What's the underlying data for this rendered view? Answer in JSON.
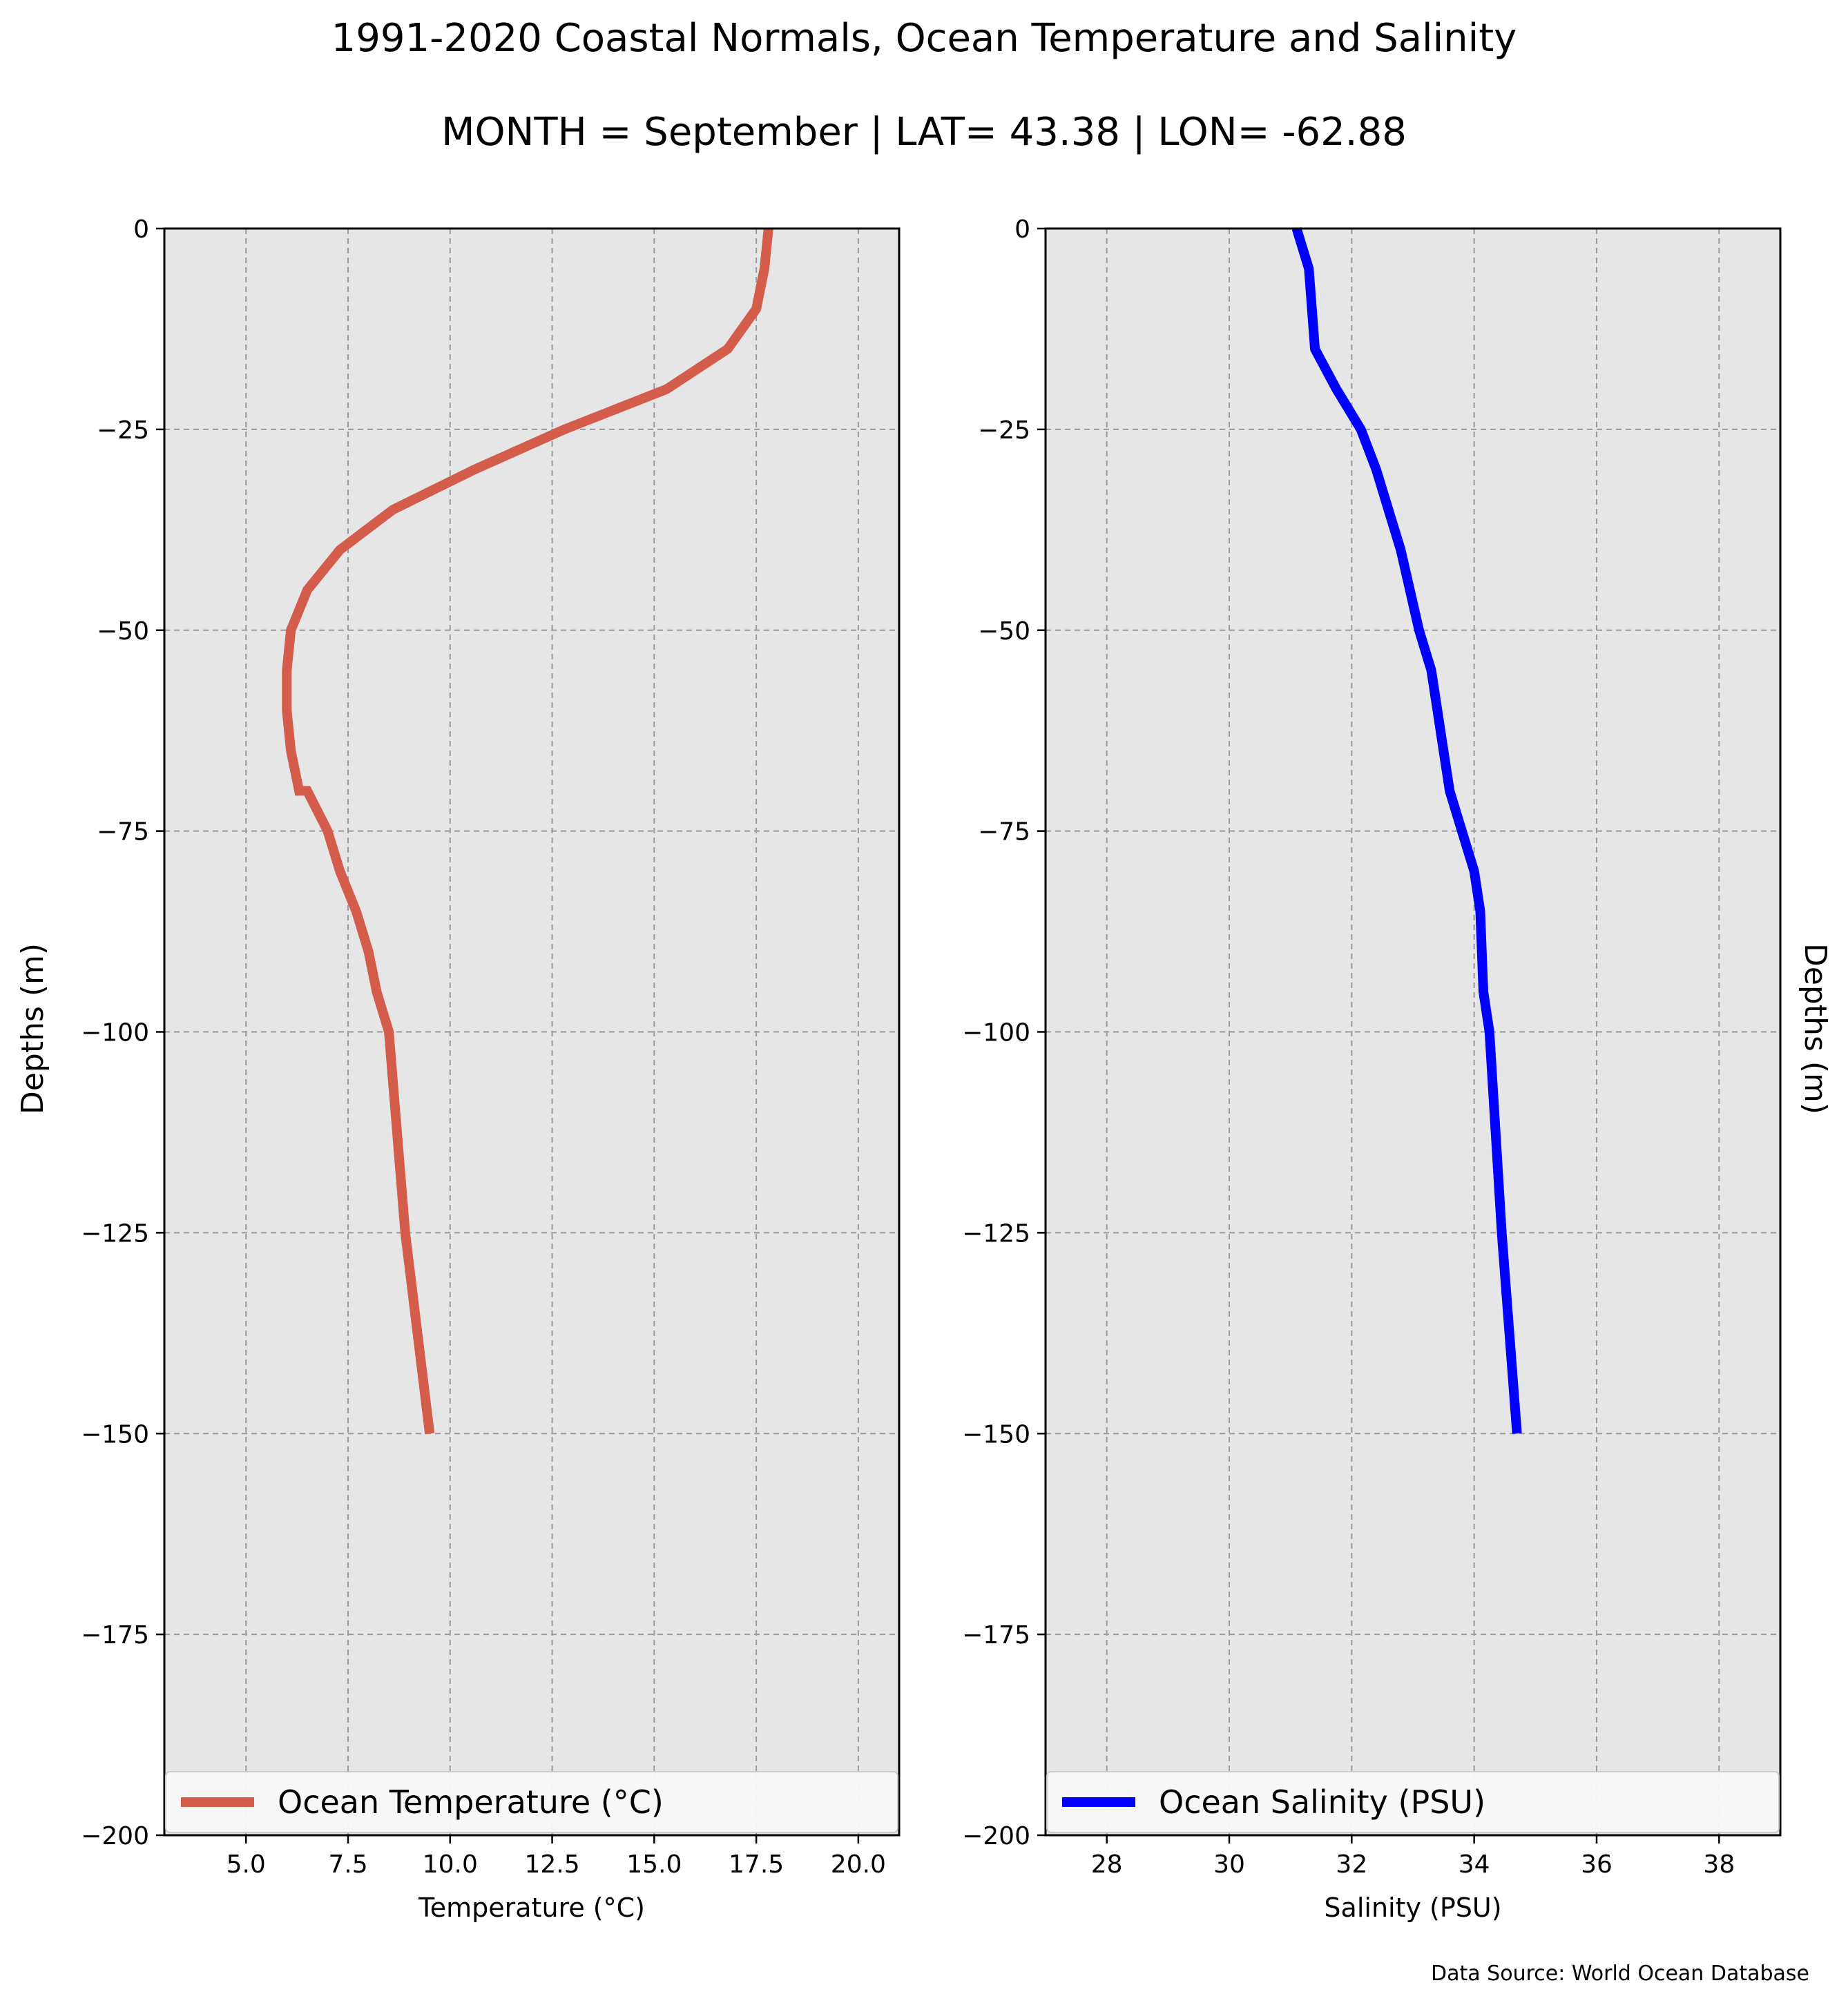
{
  "figure": {
    "title": "1991-2020 Coastal Normals, Ocean Temperature and Salinity",
    "subtitle": "MONTH = September | LAT= 43.38 | LON= -62.88",
    "source_note": "Data Source: World Ocean Database"
  },
  "chart_data": [
    {
      "type": "line",
      "xlabel": "Temperature ($^\\circ$C)",
      "xlabel_display": "Temperature (°C)",
      "ylabel": "Depths (m)",
      "xlim": [
        3.0,
        21.0
      ],
      "ylim": [
        -200,
        0
      ],
      "xticks": [
        5.0,
        7.5,
        10.0,
        12.5,
        15.0,
        17.5,
        20.0
      ],
      "xtick_labels": [
        "5.0",
        "7.5",
        "10.0",
        "12.5",
        "15.0",
        "17.5",
        "20.0"
      ],
      "yticks": [
        0,
        -25,
        -50,
        -75,
        -100,
        -125,
        -150,
        -175,
        -200
      ],
      "ytick_labels": [
        "0",
        "−25",
        "−50",
        "−75",
        "−100",
        "−125",
        "−150",
        "−175",
        "−200"
      ],
      "grid": true,
      "legend_position": "bottom",
      "series": [
        {
          "name": "Ocean Temperature ($^\\circ$C)",
          "legend_label": "Ocean Temperature (°C)",
          "color": "#d45c4a",
          "x": [
            17.8,
            17.7,
            17.5,
            16.8,
            15.3,
            12.8,
            10.6,
            8.6,
            7.3,
            6.5,
            6.1,
            6.0,
            6.0,
            6.1,
            6.3,
            6.5,
            7.0,
            7.3,
            7.7,
            8.0,
            8.2,
            8.5,
            8.9,
            9.5
          ],
          "y": [
            0,
            -5,
            -10,
            -15,
            -20,
            -25,
            -30,
            -35,
            -40,
            -45,
            -50,
            -55,
            -60,
            -65,
            -70,
            -70,
            -75,
            -80,
            -85,
            -90,
            -95,
            -100,
            -125,
            -150
          ]
        }
      ]
    },
    {
      "type": "line",
      "xlabel": "Salinity (PSU)",
      "ylabel": "Depths (m)",
      "xlim": [
        27.0,
        39.0
      ],
      "ylim": [
        -200,
        0
      ],
      "xticks": [
        28,
        30,
        32,
        34,
        36,
        38
      ],
      "xtick_labels": [
        "28",
        "30",
        "32",
        "34",
        "36",
        "38"
      ],
      "yticks": [
        0,
        -25,
        -50,
        -75,
        -100,
        -125,
        -150,
        -175,
        -200
      ],
      "ytick_labels": [
        "0",
        "−25",
        "−50",
        "−75",
        "−100",
        "−125",
        "−150",
        "−175",
        "−200"
      ],
      "grid": true,
      "legend_position": "bottom",
      "series": [
        {
          "name": "Ocean Salinity (PSU)",
          "color": "#0000ff",
          "x": [
            31.1,
            31.3,
            31.4,
            31.75,
            32.15,
            32.4,
            32.6,
            32.8,
            32.95,
            33.1,
            33.3,
            33.5,
            33.6,
            33.8,
            34.0,
            34.1,
            34.15,
            34.25,
            34.45,
            34.7
          ],
          "y": [
            0,
            -5,
            -15,
            -20,
            -25,
            -30,
            -35,
            -40,
            -45,
            -50,
            -55,
            -65,
            -70,
            -75,
            -80,
            -85,
            -95,
            -100,
            -125,
            -150
          ]
        }
      ]
    }
  ]
}
